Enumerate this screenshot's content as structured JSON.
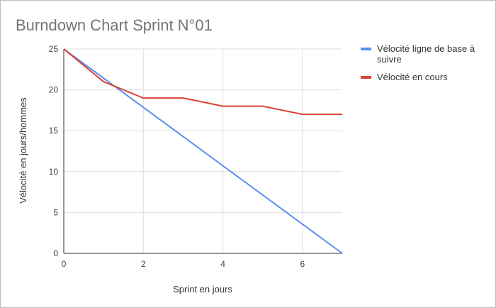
{
  "chart_data": {
    "type": "line",
    "title": "Burndown Chart Sprint N°01",
    "xlabel": "Sprint en jours",
    "ylabel": "Vélocité en jours/hommes",
    "xlim": [
      0,
      7
    ],
    "ylim": [
      0,
      25
    ],
    "x_ticks": [
      0,
      2,
      4,
      6
    ],
    "y_ticks": [
      0,
      5,
      10,
      15,
      20,
      25
    ],
    "grid": true,
    "legend_position": "right",
    "series": [
      {
        "name": "Vélocité ligne de base à suivre",
        "legend_lines": [
          "Vélocité ligne de base à",
          "suivre"
        ],
        "color": "#5a8ef0",
        "x": [
          0,
          7
        ],
        "y": [
          25,
          0
        ]
      },
      {
        "name": "Vélocité en cours",
        "legend_lines": [
          "Vélocité en cours"
        ],
        "color": "#db4437",
        "x": [
          0,
          1,
          2,
          3,
          4,
          5,
          6,
          7
        ],
        "y": [
          25,
          21,
          19,
          19,
          18,
          18,
          17,
          17
        ]
      }
    ]
  }
}
